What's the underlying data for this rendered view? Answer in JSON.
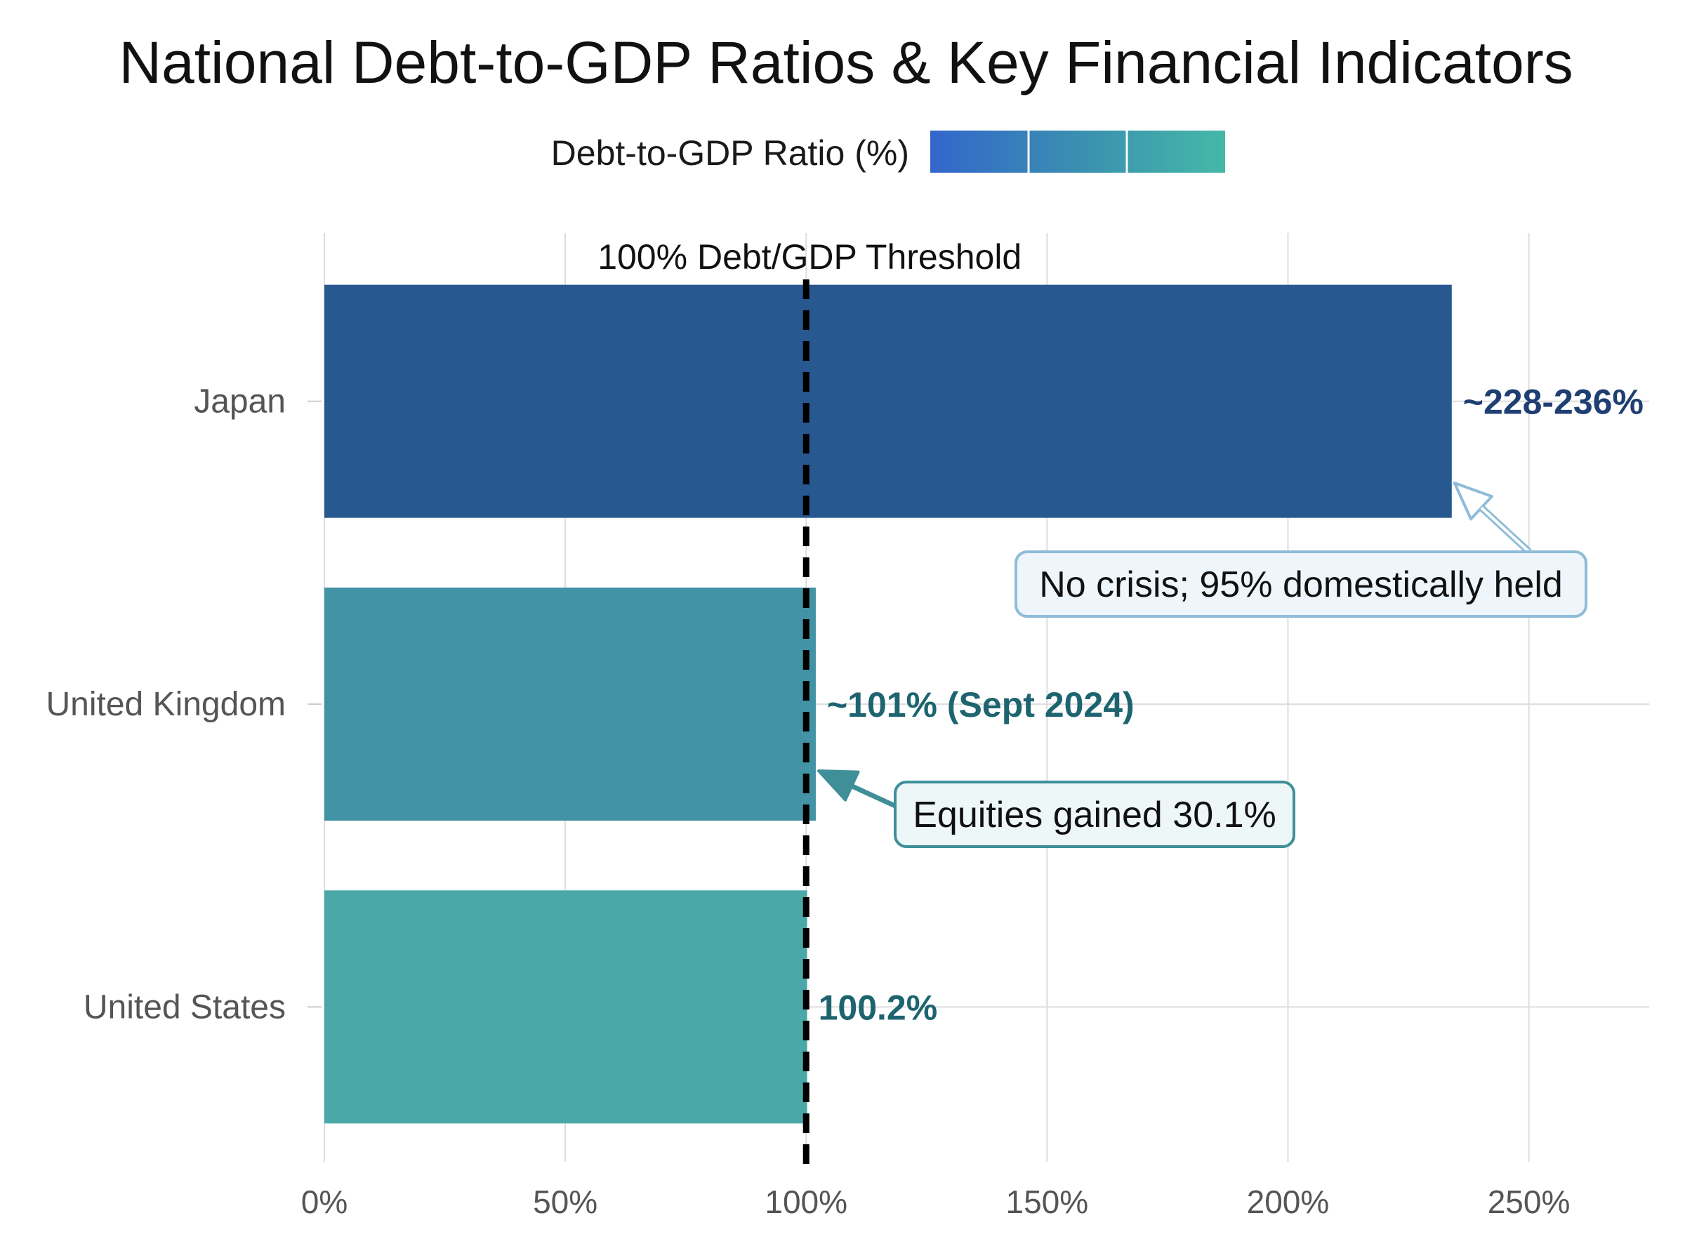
{
  "chart_data": {
    "type": "bar",
    "orientation": "horizontal",
    "title": "National Debt-to-GDP Ratios & Key Financial Indicators",
    "legend": {
      "label": "Debt-to-GDP Ratio (%)",
      "placement": "top-center",
      "gradient_colors": [
        "#3366cc",
        "#3a8fb0",
        "#45b8a8"
      ]
    },
    "categories": [
      "Japan",
      "United Kingdom",
      "United States"
    ],
    "values": [
      234,
      102,
      100.2
    ],
    "value_labels": [
      "~228-236%",
      "~101% (Sept 2024)",
      "100.2%"
    ],
    "bar_colors": [
      "#27588f",
      "#4193a5",
      "#4aa8a9"
    ],
    "label_colors": [
      "#1f3f73",
      "#1d6470",
      "#1d6470"
    ],
    "xlim": [
      0,
      275
    ],
    "xticks": [
      0,
      50,
      100,
      150,
      200,
      250
    ],
    "xtick_labels": [
      "0%",
      "50%",
      "100%",
      "150%",
      "200%",
      "250%"
    ],
    "grid": true,
    "threshold": {
      "value": 100,
      "label": "100% Debt/GDP Threshold",
      "style": "dashed",
      "color": "#000000"
    },
    "annotations": [
      {
        "category": "Japan",
        "text": "No crisis; 95% domestically held",
        "border_color": "#8fbcd8",
        "fill_color": "#eef6fb",
        "arrow_color": "#8fbcd8"
      },
      {
        "category": "United Kingdom",
        "text": "Equities gained 30.1%",
        "border_color": "#3f8f99",
        "fill_color": "#eef7f7",
        "arrow_color": "#3f8f99"
      }
    ]
  }
}
